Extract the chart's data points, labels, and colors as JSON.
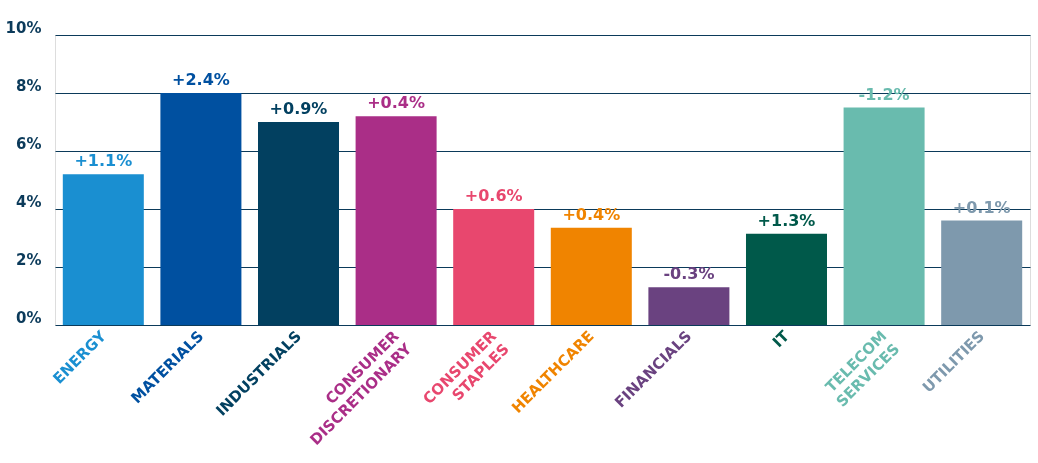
{
  "chart_data": {
    "type": "bar",
    "categories": [
      "ENERGY",
      "MATERIALS",
      "INDUSTRIALS",
      "CONSUMER DISCRETIONARY",
      "CONSUMER STAPLES",
      "HEALTHCARE",
      "FINANCIALS",
      "IT",
      "TELECOM SERVICES",
      "UTILITIES"
    ],
    "values": [
      5.2,
      8.0,
      7.0,
      7.2,
      4.0,
      3.35,
      1.3,
      3.15,
      7.5,
      3.6
    ],
    "colors": [
      "#1a8fd1",
      "#0050a0",
      "#024060",
      "#aa2e87",
      "#e8476e",
      "#f08400",
      "#6a4280",
      "#00594a",
      "#69bbae",
      "#7e99ad"
    ],
    "ylim": [
      0,
      10
    ],
    "yticks": [
      {
        "value": 0,
        "label": "0%"
      },
      {
        "value": 2,
        "label": "2%"
      },
      {
        "value": 4,
        "label": "4%"
      },
      {
        "value": 6,
        "label": "6%"
      },
      {
        "value": 8,
        "label": "8%"
      },
      {
        "value": 10,
        "label": "10%"
      }
    ],
    "grid": "y",
    "annotations": [
      {
        "text": "+1.1%",
        "x": "ENERGY",
        "y": 5.2
      },
      {
        "text": "+2.4%",
        "x": "MATERIALS",
        "y": 8.0
      },
      {
        "text": "+0.9%",
        "x": "INDUSTRIALS",
        "y": 7.0
      },
      {
        "text": "+0.4%",
        "x": "CONSUMER DISCRETIONARY",
        "y": 7.2
      },
      {
        "text": "+0.6%",
        "x": "CONSUMER STAPLES",
        "y": 4.0
      },
      {
        "text": "+0.4%",
        "x": "HEALTHCARE",
        "y": 3.35
      },
      {
        "text": "-0.3%",
        "x": "FINANCIALS",
        "y": 1.3
      },
      {
        "text": "+1.3%",
        "x": "IT",
        "y": 3.15
      },
      {
        "text": "-1.2%",
        "x": "TELECOM SERVICES",
        "y": 7.5
      },
      {
        "text": "+0.1%",
        "x": "UTILITIES",
        "y": 3.6
      }
    ]
  }
}
